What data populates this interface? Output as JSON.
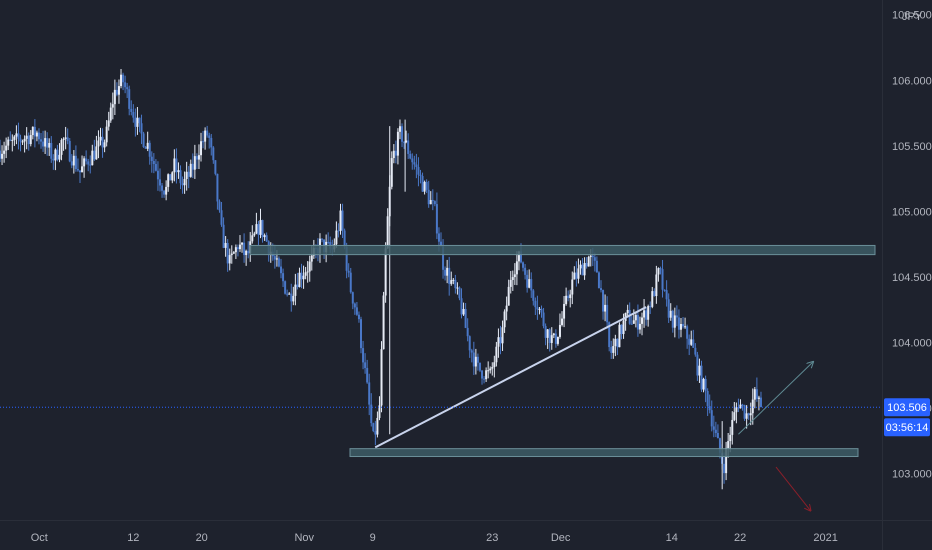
{
  "colors": {
    "background": "#1e222d",
    "candle_up": "#e6ebf5",
    "candle_down": "#4a78c8",
    "zone_fill": "#3d5c66",
    "zone_stroke": "#6b8f99",
    "trendline": "#c8d3ec",
    "projection_up": "#5f8a93",
    "projection_down": "#8a1f2a",
    "price_line": "#2962ff",
    "badge": "#2962ff",
    "axis_text": "#b2b5be"
  },
  "chart_data": {
    "type": "candlestick",
    "instrument_unit": "JPY",
    "ylim": [
      102.6,
      106.5
    ],
    "ticks_y": [
      "106.500",
      "106.000",
      "105.500",
      "105.000",
      "104.500",
      "104.000",
      "103.500",
      "103.000"
    ],
    "ticks_x": [
      {
        "label": "Oct",
        "day": 0
      },
      {
        "label": "12",
        "day": 11
      },
      {
        "label": "20",
        "day": 19
      },
      {
        "label": "Nov",
        "day": 31
      },
      {
        "label": "9",
        "day": 39
      },
      {
        "label": "23",
        "day": 53
      },
      {
        "label": "Dec",
        "day": 61
      },
      {
        "label": "14",
        "day": 74
      },
      {
        "label": "22",
        "day": 82
      },
      {
        "label": "2021",
        "day": 92
      }
    ],
    "xlim_days": [
      -4.6,
      98.6
    ],
    "last_day": 84.5,
    "current_price": "103.506",
    "countdown": "03:56:14",
    "path_points": [
      [
        -5,
        105.45
      ],
      [
        -2,
        105.55
      ],
      [
        0,
        105.6
      ],
      [
        2,
        105.4
      ],
      [
        3,
        105.55
      ],
      [
        5,
        105.3
      ],
      [
        6,
        105.4
      ],
      [
        8,
        105.55
      ],
      [
        9,
        105.9
      ],
      [
        10,
        106.0
      ],
      [
        11,
        105.8
      ],
      [
        12,
        105.6
      ],
      [
        13,
        105.5
      ],
      [
        14,
        105.3
      ],
      [
        15,
        105.15
      ],
      [
        16,
        105.35
      ],
      [
        17,
        105.2
      ],
      [
        18,
        105.3
      ],
      [
        19,
        105.5
      ],
      [
        20,
        105.6
      ],
      [
        20.8,
        105.25
      ],
      [
        21.5,
        104.85
      ],
      [
        22.5,
        104.6
      ],
      [
        23.5,
        104.75
      ],
      [
        24.5,
        104.65
      ],
      [
        26,
        104.9
      ],
      [
        27,
        104.75
      ],
      [
        28.5,
        104.5
      ],
      [
        29.5,
        104.35
      ],
      [
        30.5,
        104.5
      ],
      [
        32,
        104.6
      ],
      [
        33,
        104.75
      ],
      [
        34.5,
        104.7
      ],
      [
        35.5,
        104.95
      ],
      [
        36.5,
        104.45
      ],
      [
        37.5,
        104.2
      ],
      [
        38.5,
        103.7
      ],
      [
        39.3,
        103.25
      ],
      [
        40,
        103.45
      ],
      [
        40.8,
        104.75
      ],
      [
        41.5,
        105.4
      ],
      [
        42.5,
        105.6
      ],
      [
        43.5,
        105.45
      ],
      [
        44.5,
        105.3
      ],
      [
        45.5,
        105.15
      ],
      [
        46.5,
        105.0
      ],
      [
        47.5,
        104.6
      ],
      [
        48.5,
        104.45
      ],
      [
        49.5,
        104.3
      ],
      [
        50.5,
        104.0
      ],
      [
        51.5,
        103.8
      ],
      [
        53,
        103.75
      ],
      [
        54.5,
        104.1
      ],
      [
        55.5,
        104.55
      ],
      [
        56.5,
        104.65
      ],
      [
        57.5,
        104.45
      ],
      [
        58.5,
        104.3
      ],
      [
        59.5,
        104.1
      ],
      [
        60.5,
        104.0
      ],
      [
        61.5,
        104.2
      ],
      [
        62.5,
        104.45
      ],
      [
        63.5,
        104.55
      ],
      [
        64.5,
        104.65
      ],
      [
        65.5,
        104.55
      ],
      [
        66.5,
        104.2
      ],
      [
        67,
        103.9
      ],
      [
        68,
        104.05
      ],
      [
        69,
        104.2
      ],
      [
        70,
        104.15
      ],
      [
        71,
        104.2
      ],
      [
        72,
        104.35
      ],
      [
        72.8,
        104.55
      ],
      [
        73.5,
        104.3
      ],
      [
        74.5,
        104.15
      ],
      [
        75.5,
        104.1
      ],
      [
        76.5,
        104.0
      ],
      [
        77.5,
        103.75
      ],
      [
        78.5,
        103.55
      ],
      [
        79.5,
        103.25
      ],
      [
        80.3,
        103.05
      ],
      [
        81,
        103.3
      ],
      [
        82,
        103.55
      ],
      [
        83,
        103.45
      ],
      [
        84,
        103.6
      ],
      [
        84.5,
        103.52
      ]
    ]
  }
}
